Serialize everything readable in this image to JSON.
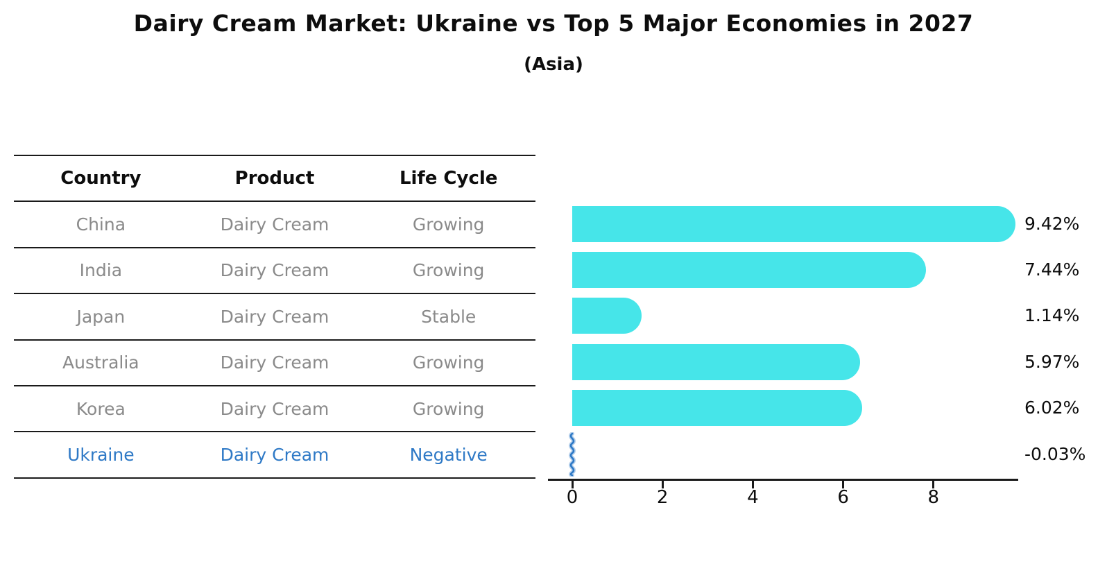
{
  "title": "Dairy Cream Market: Ukraine vs Top 5 Major Economies in 2027",
  "subtitle": "(Asia)",
  "table": {
    "headers": [
      "Country",
      "Product",
      "Life Cycle"
    ],
    "rows": [
      {
        "country": "China",
        "product": "Dairy Cream",
        "life_cycle": "Growing",
        "highlight": false
      },
      {
        "country": "India",
        "product": "Dairy Cream",
        "life_cycle": "Growing",
        "highlight": false
      },
      {
        "country": "Japan",
        "product": "Dairy Cream",
        "life_cycle": "Stable",
        "highlight": false
      },
      {
        "country": "Australia",
        "product": "Dairy Cream",
        "life_cycle": "Growing",
        "highlight": false
      },
      {
        "country": "Korea",
        "product": "Dairy Cream",
        "life_cycle": "Growing",
        "highlight": false
      },
      {
        "country": "Ukraine",
        "product": "Dairy Cream",
        "life_cycle": "Negative",
        "highlight": true
      }
    ]
  },
  "chart_data": {
    "type": "bar",
    "orientation": "horizontal",
    "title": "Dairy Cream Market: Ukraine vs Top 5 Major Economies in 2027",
    "subtitle": "(Asia)",
    "categories": [
      "China",
      "India",
      "Japan",
      "Australia",
      "Korea",
      "Ukraine"
    ],
    "values": [
      9.42,
      7.44,
      1.14,
      5.97,
      6.02,
      -0.03
    ],
    "value_labels": [
      "9.42%",
      "7.44%",
      "1.14%",
      "5.97%",
      "6.02%",
      "-0.03%"
    ],
    "xlabel": "",
    "ylabel": "",
    "x_ticks": [
      0,
      2,
      4,
      6,
      8
    ],
    "xlim": [
      -0.55,
      9.9
    ],
    "grid": false,
    "legend": false,
    "bar_color": "#46E5E9",
    "highlight_color": "#2E79C6",
    "axis_color": "#1a1a1a",
    "muted_text_color": "#8a8a8a"
  }
}
